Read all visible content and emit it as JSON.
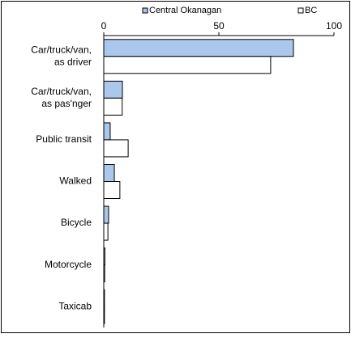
{
  "chart_data": {
    "type": "bar",
    "orientation": "horizontal",
    "categories": [
      "Car/truck/van,\nas driver",
      "Car/truck/van,\nas pas'nger",
      "Public transit",
      "Walked",
      "Bicycle",
      "Motorcycle",
      "Taxicab"
    ],
    "series": [
      {
        "name": "Central Okanagan",
        "color": "#a9c8ec",
        "values": [
          82.4,
          8.1,
          2.8,
          4.6,
          2.1,
          0.5,
          0.3
        ]
      },
      {
        "name": "BC",
        "color": "#ffffff",
        "values": [
          72.5,
          8,
          10.6,
          7,
          1.8,
          0.4,
          0.3
        ]
      }
    ],
    "xlim": [
      0,
      100
    ],
    "xticks": [
      0,
      50,
      100
    ]
  }
}
